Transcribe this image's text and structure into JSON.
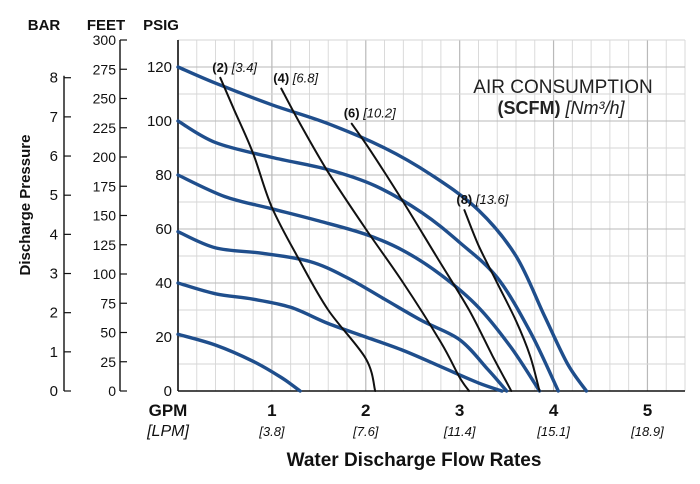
{
  "chart_data": {
    "type": "line",
    "title_line1": "AIR CONSUMPTION",
    "title_bold": "(SCFM)",
    "title_units": "[Nm³/h]",
    "ylabel": "Discharge Pressure",
    "xlabel": "Water Discharge Flow Rates",
    "x_unit_main": "GPM",
    "x_unit_alt": "[LPM]",
    "xlim": [
      0,
      5.4
    ],
    "ylim": [
      0,
      130
    ],
    "x_ticks": [
      {
        "gpm": 1,
        "label": "1",
        "alt": "[3.8]"
      },
      {
        "gpm": 2,
        "label": "2",
        "alt": "[7.6]"
      },
      {
        "gpm": 3,
        "label": "3",
        "alt": "[11.4]"
      },
      {
        "gpm": 4,
        "label": "4",
        "alt": "[15.1]"
      },
      {
        "gpm": 5,
        "label": "5",
        "alt": "[18.9]"
      }
    ],
    "psig_ticks": [
      {
        "value": 0,
        "label": "0"
      },
      {
        "value": 20,
        "label": "20"
      },
      {
        "value": 40,
        "label": "40"
      },
      {
        "value": 60,
        "label": "60"
      },
      {
        "value": 80,
        "label": "80"
      },
      {
        "value": 100,
        "label": "100"
      },
      {
        "value": 120,
        "label": "120"
      }
    ],
    "bar_axis": {
      "header": "BAR",
      "ticks": [
        {
          "value": 0,
          "label": "0"
        },
        {
          "value": 1,
          "label": "1"
        },
        {
          "value": 2,
          "label": "2"
        },
        {
          "value": 3,
          "label": "3"
        },
        {
          "value": 4,
          "label": "4"
        },
        {
          "value": 5,
          "label": "5"
        },
        {
          "value": 6,
          "label": "6"
        },
        {
          "value": 7,
          "label": "7"
        },
        {
          "value": 8,
          "label": "8"
        }
      ]
    },
    "feet_axis": {
      "header": "FEET",
      "ticks": [
        {
          "value": 0,
          "label": "0"
        },
        {
          "value": 25,
          "label": "25"
        },
        {
          "value": 50,
          "label": "50"
        },
        {
          "value": 75,
          "label": "75"
        },
        {
          "value": 100,
          "label": "100"
        },
        {
          "value": 125,
          "label": "125"
        },
        {
          "value": 150,
          "label": "150"
        },
        {
          "value": 175,
          "label": "175"
        },
        {
          "value": 200,
          "label": "200"
        },
        {
          "value": 225,
          "label": "225"
        },
        {
          "value": 250,
          "label": "250"
        },
        {
          "value": 275,
          "label": "275"
        },
        {
          "value": 300,
          "label": "300"
        }
      ]
    },
    "psig_header": "PSIG",
    "pressure_curves": [
      {
        "color": "#1f4e8c",
        "points": [
          [
            0,
            120
          ],
          [
            0.4,
            114
          ],
          [
            1.0,
            106
          ],
          [
            1.6,
            99
          ],
          [
            2.2,
            90
          ],
          [
            2.7,
            80
          ],
          [
            3.2,
            67
          ],
          [
            3.6,
            50
          ],
          [
            3.9,
            28
          ],
          [
            4.15,
            10
          ],
          [
            4.35,
            0
          ]
        ]
      },
      {
        "color": "#1f4e8c",
        "points": [
          [
            0,
            100
          ],
          [
            0.4,
            92
          ],
          [
            1.0,
            86.5
          ],
          [
            1.6,
            82
          ],
          [
            2.1,
            76
          ],
          [
            2.6,
            66
          ],
          [
            3.0,
            55
          ],
          [
            3.4,
            42
          ],
          [
            3.75,
            22
          ],
          [
            4.05,
            0
          ]
        ]
      },
      {
        "color": "#1f4e8c",
        "points": [
          [
            0,
            80
          ],
          [
            0.5,
            72
          ],
          [
            1.0,
            67.5
          ],
          [
            1.5,
            63
          ],
          [
            2.0,
            58
          ],
          [
            2.4,
            52
          ],
          [
            2.8,
            43
          ],
          [
            3.2,
            31
          ],
          [
            3.55,
            16
          ],
          [
            3.85,
            0
          ]
        ]
      },
      {
        "color": "#1f4e8c",
        "points": [
          [
            0,
            59
          ],
          [
            0.4,
            53
          ],
          [
            0.9,
            51
          ],
          [
            1.4,
            48
          ],
          [
            1.8,
            42
          ],
          [
            2.2,
            34
          ],
          [
            2.6,
            26
          ],
          [
            3.0,
            19
          ],
          [
            3.3,
            8
          ],
          [
            3.5,
            0
          ]
        ]
      },
      {
        "color": "#1f4e8c",
        "points": [
          [
            0,
            40
          ],
          [
            0.4,
            36
          ],
          [
            0.8,
            34
          ],
          [
            1.2,
            31
          ],
          [
            1.6,
            25
          ],
          [
            2.0,
            20
          ],
          [
            2.4,
            15
          ],
          [
            2.8,
            9
          ],
          [
            3.2,
            3
          ],
          [
            3.45,
            0
          ]
        ]
      },
      {
        "color": "#1f4e8c",
        "points": [
          [
            0,
            21
          ],
          [
            0.4,
            17
          ],
          [
            0.8,
            11
          ],
          [
            1.1,
            5
          ],
          [
            1.3,
            0
          ]
        ]
      }
    ],
    "air_curves": [
      {
        "label": "(2)",
        "label_alt": "[3.4]",
        "color": "#111111",
        "points": [
          [
            0.45,
            116
          ],
          [
            0.6,
            104
          ],
          [
            0.8,
            88
          ],
          [
            1.0,
            68
          ],
          [
            1.3,
            48
          ],
          [
            1.6,
            30
          ],
          [
            2.0,
            12
          ],
          [
            2.1,
            0
          ]
        ]
      },
      {
        "label": "(4)",
        "label_alt": "[6.8]",
        "color": "#111111",
        "points": [
          [
            1.1,
            112
          ],
          [
            1.3,
            99
          ],
          [
            1.6,
            81
          ],
          [
            2.0,
            60
          ],
          [
            2.4,
            40
          ],
          [
            2.8,
            18
          ],
          [
            3.0,
            5
          ],
          [
            3.1,
            0
          ]
        ]
      },
      {
        "label": "(6)",
        "label_alt": "[10.2]",
        "color": "#111111",
        "points": [
          [
            1.85,
            99
          ],
          [
            2.05,
            89
          ],
          [
            2.4,
            70
          ],
          [
            2.75,
            50
          ],
          [
            3.1,
            30
          ],
          [
            3.35,
            13
          ],
          [
            3.55,
            0
          ]
        ]
      },
      {
        "label": "(8)",
        "label_alt": "[13.6]",
        "color": "#111111",
        "points": [
          [
            3.05,
            67
          ],
          [
            3.2,
            54
          ],
          [
            3.4,
            40
          ],
          [
            3.6,
            26
          ],
          [
            3.75,
            13
          ],
          [
            3.85,
            0
          ]
        ]
      }
    ],
    "grid": true
  }
}
